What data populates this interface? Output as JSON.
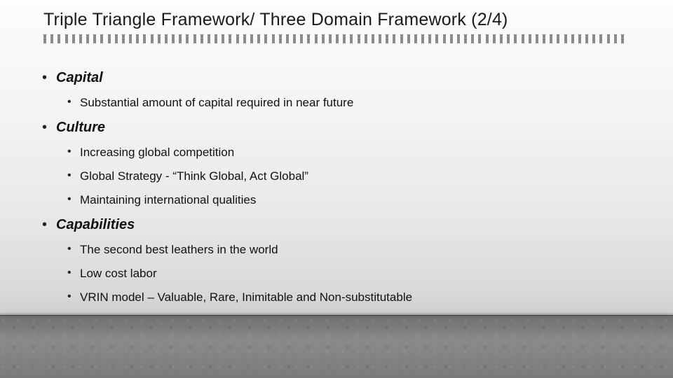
{
  "title": "Triple Triangle Framework/ Three Domain Framework (2/4)",
  "title_fontsize": 25,
  "title_color": "#1a1a1a",
  "tick_color": "#8a8a8a",
  "tick_count": 82,
  "background_gradient": [
    "#fdfdfd",
    "#f2f2f2",
    "#e6e6e6",
    "#d8d8d8",
    "#cfcfcf"
  ],
  "floor_colors": [
    "#6f6f6f",
    "#8a8a8a",
    "#7a7a7a"
  ],
  "bullets": {
    "lvl1_fontsize": 20,
    "lvl2_fontsize": 17,
    "text_color": "#111111",
    "items": [
      {
        "label": "Capital",
        "children": [
          "Substantial amount of capital required in near future"
        ]
      },
      {
        "label": "Culture",
        "children": [
          "Increasing global competition",
          "Global Strategy - “Think Global, Act Global”",
          "Maintaining international qualities"
        ]
      },
      {
        "label": "Capabilities",
        "children": [
          "The second best leathers in the world",
          "Low cost labor",
          "VRIN model – Valuable, Rare, Inimitable and Non-substitutable"
        ]
      }
    ]
  }
}
